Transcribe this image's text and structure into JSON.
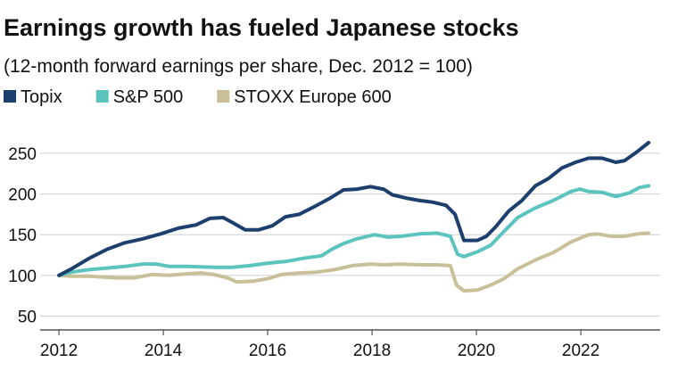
{
  "chart_data": {
    "type": "line",
    "title": "Earnings growth has fueled Japanese stocks",
    "subtitle": "(12-month forward earnings per share, Dec. 2012 = 100)",
    "xlim": [
      2011.64,
      2023.52
    ],
    "xticks": [
      2012,
      2014,
      2016,
      2018,
      2020,
      2022
    ],
    "ylim": [
      33,
      274
    ],
    "yticks": [
      50,
      100,
      150,
      200,
      250
    ],
    "grid": true,
    "series": [
      {
        "name": "Topix",
        "color": "#1d3f6e",
        "x": [
          2012,
          2012.24,
          2012.58,
          2012.92,
          2013.26,
          2013.61,
          2013.95,
          2014.29,
          2014.63,
          2014.89,
          2015.15,
          2015.35,
          2015.57,
          2015.83,
          2016.09,
          2016.34,
          2016.6,
          2016.85,
          2017.2,
          2017.45,
          2017.71,
          2017.97,
          2018.22,
          2018.39,
          2018.65,
          2018.91,
          2019.16,
          2019.42,
          2019.59,
          2019.76,
          2020.02,
          2020.19,
          2020.36,
          2020.62,
          2020.87,
          2021.13,
          2021.38,
          2021.64,
          2021.9,
          2022.15,
          2022.41,
          2022.67,
          2022.84,
          2023.04,
          2023.3
        ],
        "values": [
          100,
          108,
          121,
          132,
          140,
          145,
          151,
          158,
          162,
          170,
          171,
          164,
          156,
          156,
          161,
          172,
          175,
          183,
          195,
          205,
          206,
          209,
          206,
          199,
          195,
          192,
          190,
          186,
          175,
          143,
          143,
          148,
          159,
          179,
          192,
          210,
          219,
          232,
          239,
          244,
          244,
          239,
          241,
          250,
          263
        ]
      },
      {
        "name": "S&P 500",
        "color": "#5cc4bf",
        "x": [
          2012,
          2012.24,
          2012.58,
          2012.92,
          2013.26,
          2013.61,
          2013.86,
          2014.12,
          2014.46,
          2014.97,
          2015.32,
          2015.66,
          2016,
          2016.34,
          2016.68,
          2017.03,
          2017.23,
          2017.45,
          2017.71,
          2018.05,
          2018.31,
          2018.56,
          2018.91,
          2019.25,
          2019.5,
          2019.64,
          2019.76,
          2020.02,
          2020.27,
          2020.53,
          2020.79,
          2021.13,
          2021.47,
          2021.81,
          2021.98,
          2022.15,
          2022.41,
          2022.67,
          2022.92,
          2023.13,
          2023.3
        ],
        "values": [
          100,
          104,
          107,
          109,
          111,
          114,
          114,
          111,
          111,
          110,
          110,
          112,
          115,
          117,
          121,
          124,
          132,
          139,
          145,
          150,
          147,
          148,
          151,
          152,
          148,
          126,
          123,
          129,
          137,
          154,
          171,
          183,
          192,
          203,
          206,
          203,
          202,
          197,
          201,
          208,
          210
        ]
      },
      {
        "name": "STOXX Europe 600",
        "color": "#c9c09a",
        "x": [
          2012,
          2012.24,
          2012.58,
          2013.09,
          2013.44,
          2013.78,
          2014.12,
          2014.46,
          2014.72,
          2014.97,
          2015.23,
          2015.4,
          2015.74,
          2016,
          2016.26,
          2016.6,
          2016.94,
          2017.28,
          2017.62,
          2017.97,
          2018.22,
          2018.56,
          2018.91,
          2019.25,
          2019.5,
          2019.62,
          2019.76,
          2020.02,
          2020.27,
          2020.53,
          2020.79,
          2021.13,
          2021.47,
          2021.81,
          2022.15,
          2022.32,
          2022.58,
          2022.84,
          2023.09,
          2023.3
        ],
        "values": [
          100,
          99,
          99,
          97,
          97,
          101,
          100,
          102,
          103,
          101,
          97,
          92,
          93,
          96,
          101,
          103,
          104,
          107,
          112,
          114,
          113,
          114,
          113,
          113,
          112,
          88,
          81,
          82,
          88,
          96,
          108,
          119,
          128,
          141,
          150,
          151,
          148,
          148,
          151,
          152
        ]
      }
    ]
  }
}
